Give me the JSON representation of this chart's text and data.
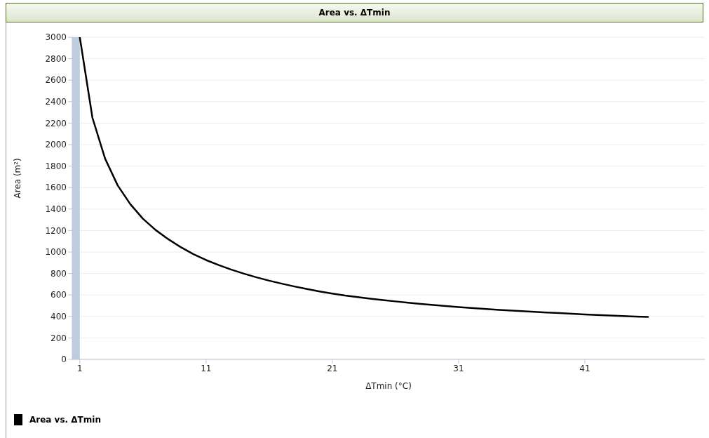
{
  "chart_data": {
    "type": "line",
    "title": "Area vs. ΔTmin",
    "xlabel": "ΔTmin (°C)",
    "ylabel": "Area (m²)",
    "x": [
      1,
      2,
      3,
      4,
      5,
      6,
      7,
      8,
      9,
      10,
      11,
      12,
      13,
      14,
      15,
      16,
      17,
      18,
      19,
      20,
      21,
      22,
      23,
      24,
      25,
      26,
      27,
      28,
      29,
      30,
      31,
      32,
      33,
      34,
      35,
      36,
      37,
      38,
      39,
      40,
      41,
      42,
      43,
      44,
      45,
      46
    ],
    "series": [
      {
        "name": "Area vs. ΔTmin",
        "color": "#000000",
        "values": [
          3000,
          2250,
          1870,
          1620,
          1445,
          1310,
          1205,
          1120,
          1045,
          980,
          925,
          878,
          836,
          798,
          764,
          733,
          705,
          679,
          655,
          633,
          613,
          595,
          580,
          565,
          552,
          540,
          528,
          517,
          506,
          496,
          487,
          479,
          471,
          463,
          456,
          449,
          443,
          437,
          431,
          425,
          419,
          414,
          409,
          404,
          399,
          395
        ]
      }
    ],
    "xlim": [
      0.4,
      50.5
    ],
    "xticks": [
      1,
      11,
      21,
      31,
      41
    ],
    "ylim": [
      0,
      3000
    ],
    "yticks": [
      0,
      200,
      400,
      600,
      800,
      1000,
      1200,
      1400,
      1600,
      1800,
      2000,
      2200,
      2400,
      2600,
      2800,
      3000
    ],
    "bands": [
      {
        "axis": "x",
        "from": 0.4,
        "to": 1,
        "color": "#bccddf"
      }
    ],
    "grid": "y",
    "legend": "bottom left",
    "marker": "none",
    "line_style": "solid"
  }
}
